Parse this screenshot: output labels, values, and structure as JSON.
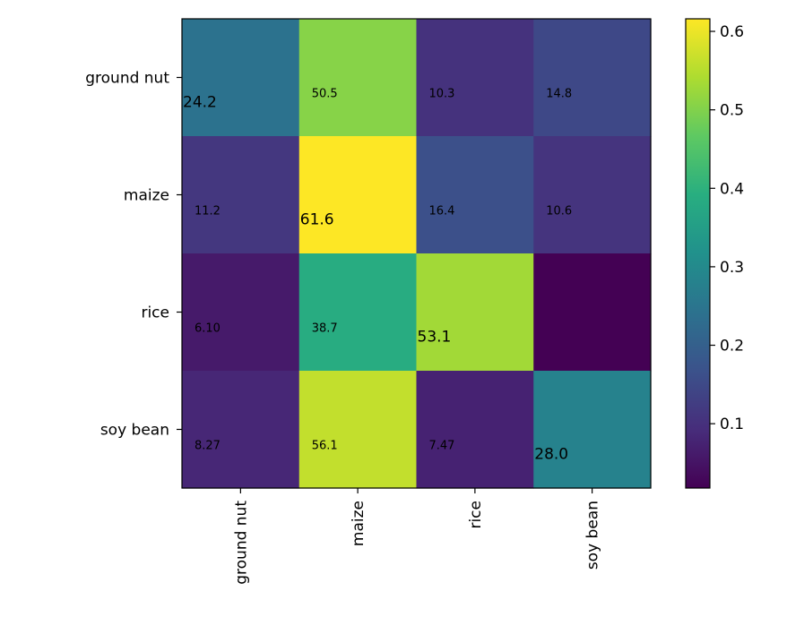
{
  "chart_data": {
    "type": "heatmap",
    "title": "",
    "xlabel": "",
    "ylabel": "",
    "x_categories": [
      "ground nut",
      "maize",
      "rice",
      "soy bean"
    ],
    "y_categories": [
      "ground nut",
      "maize",
      "rice",
      "soy bean"
    ],
    "values": [
      [
        0.242,
        0.505,
        0.103,
        0.148
      ],
      [
        0.112,
        0.616,
        0.164,
        0.106
      ],
      [
        0.061,
        0.387,
        0.531,
        0.018
      ],
      [
        0.0827,
        0.561,
        0.0747,
        0.28
      ]
    ],
    "cell_labels": [
      [
        "24.2",
        "50.5",
        "10.3",
        "14.8"
      ],
      [
        "11.2",
        "61.6",
        "16.4",
        "10.6"
      ],
      [
        "6.10",
        "38.7",
        "53.1",
        ""
      ],
      [
        "8.27",
        "56.1",
        "7.47",
        "28.0"
      ]
    ],
    "highlight_diagonal": true,
    "colormap": "viridis",
    "colorbar": {
      "min": 0.018,
      "max": 0.616,
      "ticks": [
        0.1,
        0.2,
        0.3,
        0.4,
        0.5,
        0.6
      ],
      "tick_labels": [
        "0.1",
        "0.2",
        "0.3",
        "0.4",
        "0.5",
        "0.6"
      ]
    }
  }
}
